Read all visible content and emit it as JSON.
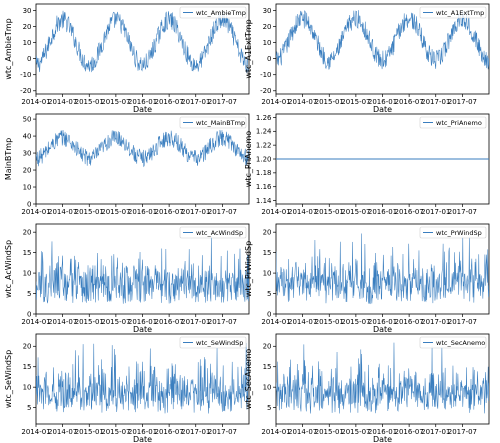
{
  "figure": {
    "line_color": "#3a7ebf",
    "legend_placement": "top-right"
  },
  "chart_data": [
    {
      "type": "line",
      "series": [
        {
          "name": "wtc_AmbieTmp",
          "pattern": "seasonal",
          "mean": 10,
          "amp": 14,
          "noise": 6,
          "phase": 0.55
        }
      ],
      "x_range": [
        "2014-01",
        "2017-12"
      ],
      "xticks": [
        "2014-01",
        "2014-07",
        "2015-01",
        "2015-07",
        "2016-01",
        "2016-07",
        "2017-01",
        "2017-07"
      ],
      "xlabel": "Date",
      "ylabel": "wtc_AmbieTmp",
      "ylim": [
        -22,
        34
      ],
      "yticks": [
        -20,
        -10,
        0,
        10,
        20,
        30
      ],
      "grid": false
    },
    {
      "type": "line",
      "series": [
        {
          "name": "wtc_A1ExtTmp",
          "pattern": "seasonal",
          "mean": 12,
          "amp": 13,
          "noise": 6,
          "phase": 0.55
        }
      ],
      "x_range": [
        "2014-01",
        "2017-12"
      ],
      "xticks": [
        "2014-01",
        "2014-07",
        "2015-01",
        "2015-07",
        "2016-01",
        "2016-07",
        "2017-01",
        "2017-07"
      ],
      "xlabel": "Date",
      "ylabel": "wtc_A1ExtTmp",
      "ylim": [
        -22,
        34
      ],
      "yticks": [
        -20,
        -10,
        0,
        10,
        20,
        30
      ],
      "grid": false
    },
    {
      "type": "line",
      "series": [
        {
          "name": "wtc_MainBTmp",
          "pattern": "seasonal",
          "mean": 33,
          "amp": 6,
          "noise": 5,
          "phase": 0.55
        }
      ],
      "x_range": [
        "2014-01",
        "2017-12"
      ],
      "xticks": [
        "2014-01",
        "2014-07",
        "2015-01",
        "2015-07",
        "2016-01",
        "2016-07",
        "2017-01",
        "2017-07"
      ],
      "xlabel": "",
      "ylabel": "MainBTmp",
      "ylim": [
        0,
        53
      ],
      "yticks": [
        0,
        10,
        20,
        30,
        40,
        50
      ],
      "grid": false
    },
    {
      "type": "line",
      "series": [
        {
          "name": "wtc_PriAnemo",
          "pattern": "constant",
          "value": 1.2
        }
      ],
      "x_range": [
        "2014-01",
        "2017-12"
      ],
      "xticks": [
        "2014-01",
        "2014-07",
        "2015-01",
        "2015-07",
        "2016-01",
        "2016-07",
        "2017-01",
        "2017-07"
      ],
      "xlabel": "",
      "ylabel": "wtc_PriAnemo",
      "ylim": [
        1.135,
        1.265
      ],
      "yticks": [
        "1.14",
        "1.16",
        "1.18",
        "1.20",
        "1.22",
        "1.24",
        "1.26"
      ],
      "grid": false
    },
    {
      "type": "line",
      "series": [
        {
          "name": "wtc_AcWindSp",
          "pattern": "wind",
          "mean": 6,
          "noise": 3.5,
          "spike": 20
        }
      ],
      "x_range": [
        "2014-01",
        "2017-12"
      ],
      "xticks": [
        "2014-01",
        "2014-07",
        "2015-01",
        "2015-07",
        "2016-01",
        "2016-07",
        "2017-01",
        "2017-07"
      ],
      "xlabel": "Date",
      "ylabel": "wtc_AcWindSp",
      "ylim": [
        0,
        22
      ],
      "yticks": [
        0,
        5,
        10,
        15,
        20
      ],
      "grid": false
    },
    {
      "type": "line",
      "series": [
        {
          "name": "wtc_PrWindSp",
          "pattern": "wind",
          "mean": 6,
          "noise": 3.5,
          "spike": 20
        }
      ],
      "x_range": [
        "2014-01",
        "2017-12"
      ],
      "xticks": [
        "2014-01",
        "2014-07",
        "2015-01",
        "2015-07",
        "2016-01",
        "2016-07",
        "2017-01",
        "2017-07"
      ],
      "xlabel": "Date",
      "ylabel": "wtc_PrWindSp",
      "ylim": [
        0,
        22
      ],
      "yticks": [
        0,
        5,
        10,
        15,
        20
      ],
      "grid": false
    },
    {
      "type": "line",
      "series": [
        {
          "name": "wtc_SeWindSp",
          "pattern": "wind",
          "mean": 7,
          "noise": 3.5,
          "spike": 21
        }
      ],
      "x_range": [
        "2014-01",
        "2017-12"
      ],
      "xticks": [
        "2014-01",
        "2014-07",
        "2015-01",
        "2015-07",
        "2016-01",
        "2016-07",
        "2017-01",
        "2017-07"
      ],
      "xlabel": "Date",
      "ylabel": "wtc_SeWindSp",
      "ylim": [
        1,
        23
      ],
      "yticks": [
        5,
        10,
        15,
        20
      ],
      "grid": false
    },
    {
      "type": "line",
      "series": [
        {
          "name": "wtc_SecAnemo",
          "pattern": "wind",
          "mean": 7,
          "noise": 3.5,
          "spike": 21
        }
      ],
      "x_range": [
        "2014-01",
        "2017-12"
      ],
      "xticks": [
        "2014-01",
        "2014-07",
        "2015-01",
        "2015-07",
        "2016-01",
        "2016-07",
        "2017-01",
        "2017-07"
      ],
      "xlabel": "Date",
      "ylabel": "wtc_SecAnemo",
      "ylim": [
        1,
        23
      ],
      "yticks": [
        5,
        10,
        15,
        20
      ],
      "grid": false
    }
  ]
}
